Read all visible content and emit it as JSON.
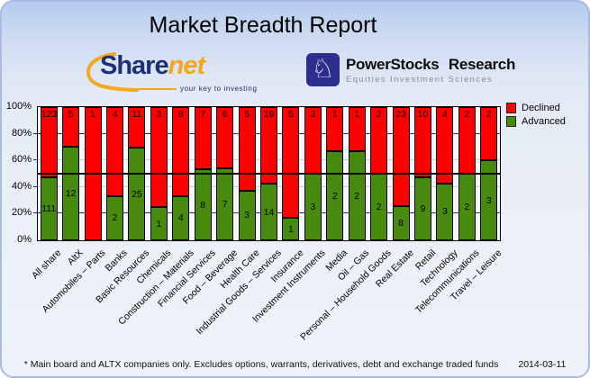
{
  "title": "Market Breadth Report",
  "logos": {
    "sharenet": {
      "text_primary": "Share",
      "text_secondary": "net",
      "tagline": "your key to investing"
    },
    "powerstocks": {
      "knight_icon": "♘",
      "title": "PowerStocks Research",
      "subtitle": "Equities Investment Sciences"
    }
  },
  "chart_data": {
    "type": "bar",
    "subtype": "stacked-100-percent",
    "title": "Market Breadth Report",
    "categories": [
      "All share",
      "AltX",
      "Automobiles – Parts",
      "Banks",
      "Basic Resources",
      "Chemicals",
      "Construction – Materials",
      "Financial Services",
      "Food – Beverage",
      "Health Care",
      "Industrial Goods – Services",
      "Insurance",
      "Investment Instruments",
      "Media",
      "Oil – Gas",
      "Personal – Household Goods",
      "Real Estate",
      "Retail",
      "Technology",
      "Telecommunications",
      "Travel – Leisure"
    ],
    "series": [
      {
        "name": "Declined",
        "color": "#ff0000",
        "values": [
          123,
          5,
          1,
          4,
          11,
          3,
          8,
          7,
          6,
          5,
          19,
          5,
          3,
          1,
          1,
          2,
          23,
          10,
          4,
          2,
          2
        ]
      },
      {
        "name": "Advanced",
        "color": "#478a0d",
        "values": [
          111,
          12,
          0,
          2,
          25,
          1,
          4,
          8,
          7,
          3,
          14,
          1,
          3,
          2,
          2,
          2,
          8,
          9,
          3,
          2,
          3
        ]
      }
    ],
    "y_ticks": [
      "0%",
      "20%",
      "40%",
      "60%",
      "80%",
      "100%"
    ],
    "ylim": [
      0,
      100
    ],
    "reference_line_percent": 50,
    "grid": true,
    "legend_position": "top-right"
  },
  "footer": {
    "note": "* Main board and ALTX companies only. Excludes options, warrants, derivatives, debt and exchange traded funds",
    "date": "2014-03-11"
  }
}
